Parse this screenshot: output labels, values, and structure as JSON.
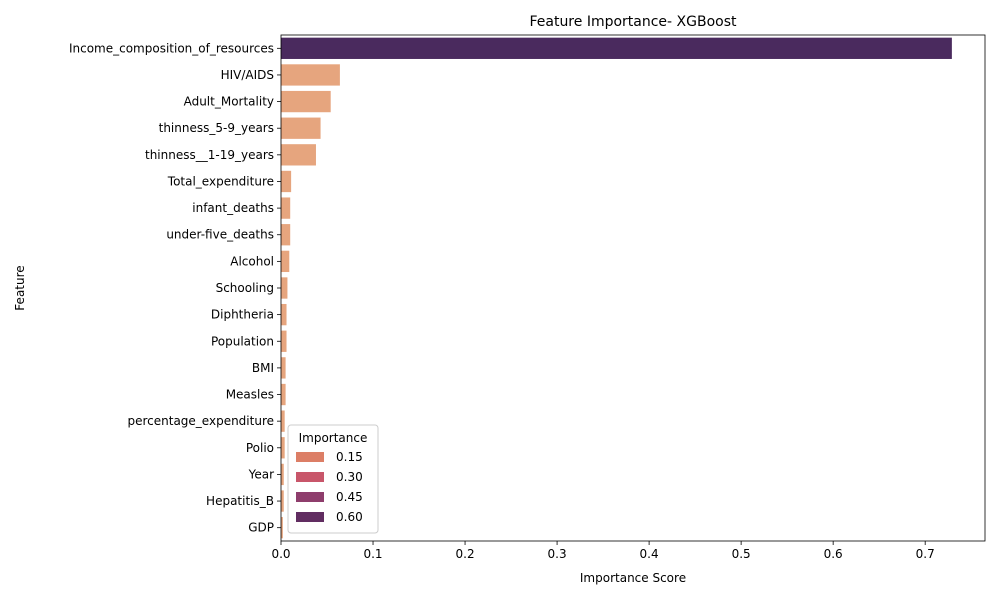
{
  "chart_data": {
    "type": "bar",
    "orientation": "horizontal",
    "title": "Feature Importance- XGBoost",
    "xlabel": "Importance Score",
    "ylabel": "Feature",
    "xlim": [
      0,
      0.765
    ],
    "xticks": [
      0.0,
      0.1,
      0.2,
      0.3,
      0.4,
      0.5,
      0.6,
      0.7
    ],
    "xtick_labels": [
      "0.0",
      "0.1",
      "0.2",
      "0.3",
      "0.4",
      "0.5",
      "0.6",
      "0.7"
    ],
    "grid": false,
    "categories": [
      "Income_composition_of_resources",
      "HIV/AIDS",
      "Adult_Mortality",
      "thinness_5-9_years",
      "thinness__1-19_years",
      "Total_expenditure",
      "infant_deaths",
      "under-five_deaths",
      "Alcohol",
      "Schooling",
      "Diphtheria",
      "Population",
      "BMI",
      "Measles",
      "percentage_expenditure",
      "Polio",
      "Year",
      "Hepatitis_B",
      "GDP"
    ],
    "values": [
      0.729,
      0.064,
      0.054,
      0.043,
      0.038,
      0.011,
      0.01,
      0.01,
      0.009,
      0.007,
      0.006,
      0.006,
      0.005,
      0.005,
      0.004,
      0.004,
      0.003,
      0.003,
      0.002
    ],
    "bar_colors": [
      "#4a2a5e",
      "#e6a57e",
      "#e6a57e",
      "#e6a57e",
      "#e6a57e",
      "#e6a57e",
      "#e6a57e",
      "#e6a57e",
      "#e6a57e",
      "#e6a57e",
      "#e6a57e",
      "#e6a57e",
      "#e6a57e",
      "#e6a57e",
      "#e6a57e",
      "#e6a57e",
      "#e6a57e",
      "#e6a57e",
      "#e6a57e"
    ],
    "legend": {
      "title": "Importance",
      "placement": "lower-left",
      "entries": [
        {
          "label": "0.15",
          "color": "#dc7e66"
        },
        {
          "label": "0.30",
          "color": "#c8566a"
        },
        {
          "label": "0.45",
          "color": "#8e3d6c"
        },
        {
          "label": "0.60",
          "color": "#612d61"
        }
      ]
    }
  }
}
